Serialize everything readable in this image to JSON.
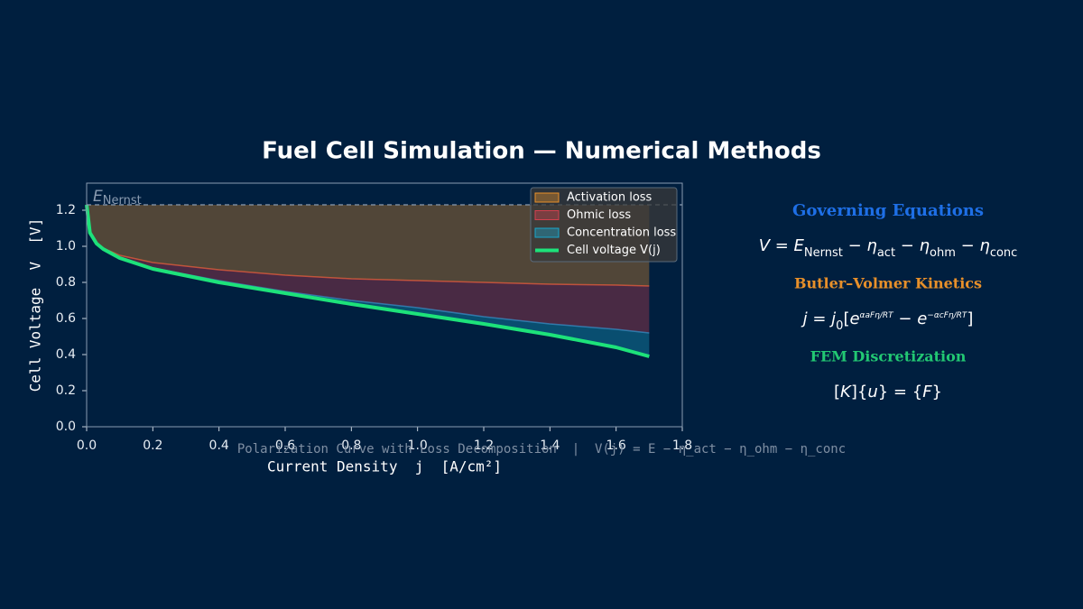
{
  "chart_data": {
    "type": "area",
    "title": "Fuel Cell Simulation — Numerical Methods",
    "xlabel": "Current Density  j  [A/cm²]",
    "ylabel": "Cell Voltage  V  [V]",
    "note": "Polarization Curve with Loss Decomposition  |  V(j) = E − η_act − η_ohm − η_conc",
    "x": [
      0,
      0.01,
      0.03,
      0.05,
      0.1,
      0.2,
      0.4,
      0.6,
      0.8,
      1.0,
      1.2,
      1.4,
      1.6,
      1.7
    ],
    "reference": {
      "value": 1.23,
      "label": "E",
      "subscript": "Nernst",
      "color": "#8a9bb0"
    },
    "series": [
      {
        "name": "Activation loss",
        "kind": "loss",
        "color": "#e8902a",
        "edge_color": "#e0603a",
        "values": [
          0,
          0.15,
          0.21,
          0.24,
          0.28,
          0.32,
          0.36,
          0.39,
          0.41,
          0.42,
          0.43,
          0.44,
          0.445,
          0.45
        ]
      },
      {
        "name": "Ohmic loss",
        "kind": "loss",
        "color": "#d2404e",
        "edge_color": "#3f7fb8",
        "values": [
          0,
          0.005,
          0.005,
          0.005,
          0.01,
          0.03,
          0.06,
          0.09,
          0.12,
          0.15,
          0.19,
          0.22,
          0.245,
          0.26
        ]
      },
      {
        "name": "Concentration loss",
        "kind": "loss",
        "color": "#1aa6cc",
        "edge_color": "#1aa6cc",
        "values": [
          0,
          0,
          0,
          0,
          0.005,
          0.005,
          0.01,
          0.01,
          0.02,
          0.035,
          0.04,
          0.06,
          0.1,
          0.13
        ]
      },
      {
        "name": "Cell voltage V(j)",
        "kind": "line",
        "color": "#1de27a",
        "values": [
          1.23,
          1.075,
          1.015,
          0.985,
          0.935,
          0.875,
          0.8,
          0.74,
          0.68,
          0.625,
          0.57,
          0.51,
          0.44,
          0.39
        ]
      }
    ],
    "xlim": [
      0,
      1.8
    ],
    "ylim": [
      0,
      1.35
    ],
    "xticks": [
      {
        "value": 0,
        "label": "0.0"
      },
      {
        "value": 0.2,
        "label": "0.2"
      },
      {
        "value": 0.4,
        "label": "0.4"
      },
      {
        "value": 0.6,
        "label": "0.6"
      },
      {
        "value": 0.8,
        "label": "0.8"
      },
      {
        "value": 1.0,
        "label": "1.0"
      },
      {
        "value": 1.2,
        "label": "1.2"
      },
      {
        "value": 1.4,
        "label": "1.4"
      },
      {
        "value": 1.6,
        "label": "1.6"
      },
      {
        "value": 1.8,
        "label": "1.8"
      }
    ],
    "yticks": [
      {
        "value": 0,
        "label": "0.0"
      },
      {
        "value": 0.2,
        "label": "0.2"
      },
      {
        "value": 0.4,
        "label": "0.4"
      },
      {
        "value": 0.6,
        "label": "0.6"
      },
      {
        "value": 0.8,
        "label": "0.8"
      },
      {
        "value": 1.0,
        "label": "1.0"
      },
      {
        "value": 1.2,
        "label": "1.2"
      }
    ],
    "legend": "upper right"
  },
  "panel": {
    "sections": [
      {
        "heading": "Governing Equations",
        "color": "#1e6fe6",
        "formula": [
          {
            "text": "V",
            "style": "italic"
          },
          {
            "text": " = "
          },
          {
            "text": "E",
            "style": "italic"
          },
          {
            "text": "Nernst",
            "style": "sub"
          },
          {
            "text": " − "
          },
          {
            "text": "η",
            "style": "italic"
          },
          {
            "text": "act",
            "style": "sub"
          },
          {
            "text": " − "
          },
          {
            "text": "η",
            "style": "italic"
          },
          {
            "text": "ohm",
            "style": "sub"
          },
          {
            "text": " − "
          },
          {
            "text": "η",
            "style": "italic"
          },
          {
            "text": "conc",
            "style": "sub"
          }
        ]
      },
      {
        "heading": "Butler–Volmer Kinetics",
        "color": "#e8902a",
        "formula": [
          {
            "text": "j",
            "style": "italic"
          },
          {
            "text": " = "
          },
          {
            "text": "j",
            "style": "italic"
          },
          {
            "text": "0",
            "style": "sub"
          },
          {
            "text": "["
          },
          {
            "text": "e",
            "style": "italic"
          },
          {
            "text": "αaFη/RT",
            "style": "sup"
          },
          {
            "text": " − "
          },
          {
            "text": "e",
            "style": "italic"
          },
          {
            "text": "−αcFη/RT",
            "style": "sup"
          },
          {
            "text": "]"
          }
        ]
      },
      {
        "heading": "FEM Discretization",
        "color": "#22c873",
        "formula": [
          {
            "text": "["
          },
          {
            "text": "K",
            "style": "italic"
          },
          {
            "text": "]{"
          },
          {
            "text": "u",
            "style": "italic"
          },
          {
            "text": "} = {"
          },
          {
            "text": "F",
            "style": "italic"
          },
          {
            "text": "}"
          }
        ]
      }
    ]
  }
}
